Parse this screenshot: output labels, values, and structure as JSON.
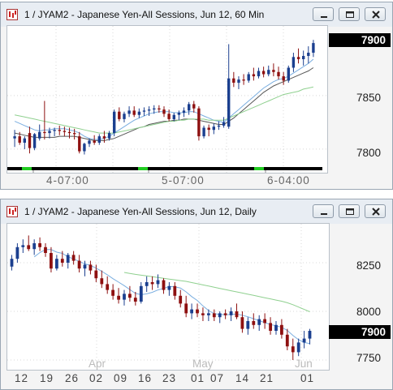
{
  "window_top": {
    "title": "1 / JYAM2 - Japanese Yen-All Sessions, Jun 12, 60 Min",
    "price_labels": [
      "7850",
      "7800"
    ],
    "current_price": "7900",
    "time_labels": [
      "4-07:00",
      "5-07:00",
      "6-04:00"
    ]
  },
  "window_bottom": {
    "title": "1 / JYAM2 - Japanese Yen-All Sessions, Jun 12, Daily",
    "price_labels": [
      "8250",
      "8000",
      "7750"
    ],
    "current_price": "7900",
    "month_labels": [
      "Apr",
      "May",
      "Jun"
    ],
    "date_labels": [
      "12",
      "19",
      "26",
      "02",
      "09",
      "16",
      "23",
      "01",
      "07",
      "14",
      "21",
      "01"
    ]
  },
  "icons": [
    "chart-window-icon",
    "minimize-icon",
    "restore-icon",
    "close-icon"
  ],
  "colors": {
    "up_candle": "#1b3f8f",
    "down_candle": "#8e1010",
    "ma_fast": "#7aaee0",
    "ma_slow": "#8fd08f",
    "ma_mid": "#555555",
    "session_bar": "#000000",
    "session_marker": "#22cc22"
  },
  "chart_data": [
    {
      "type": "candlestick",
      "title": "",
      "price_axis_ticks": [
        7850,
        7800
      ],
      "ylim": [
        7778,
        7915
      ],
      "last_price": 7900,
      "candles": [
        [
          7810,
          7818,
          7802,
          7812
        ],
        [
          7812,
          7816,
          7804,
          7806
        ],
        [
          7806,
          7812,
          7800,
          7810
        ],
        [
          7815,
          7821,
          7796,
          7801
        ],
        [
          7801,
          7815,
          7799,
          7814
        ],
        [
          7810,
          7823,
          7808,
          7816
        ],
        [
          7816,
          7845,
          7809,
          7815
        ],
        [
          7815,
          7820,
          7810,
          7817
        ],
        [
          7817,
          7820,
          7812,
          7818
        ],
        [
          7818,
          7822,
          7813,
          7817
        ],
        [
          7817,
          7821,
          7812,
          7816
        ],
        [
          7816,
          7820,
          7810,
          7815
        ],
        [
          7815,
          7819,
          7809,
          7814
        ],
        [
          7812,
          7816,
          7796,
          7798
        ],
        [
          7798,
          7806,
          7795,
          7805
        ],
        [
          7805,
          7810,
          7802,
          7808
        ],
        [
          7808,
          7813,
          7804,
          7806
        ],
        [
          7806,
          7814,
          7804,
          7812
        ],
        [
          7812,
          7817,
          7806,
          7810
        ],
        [
          7810,
          7817,
          7808,
          7815
        ],
        [
          7815,
          7837,
          7812,
          7835
        ],
        [
          7835,
          7839,
          7826,
          7828
        ],
        [
          7828,
          7835,
          7825,
          7833
        ],
        [
          7833,
          7840,
          7830,
          7836
        ],
        [
          7836,
          7840,
          7830,
          7832
        ],
        [
          7832,
          7838,
          7829,
          7835
        ],
        [
          7835,
          7839,
          7831,
          7836
        ],
        [
          7836,
          7840,
          7831,
          7837
        ],
        [
          7837,
          7841,
          7833,
          7838
        ],
        [
          7838,
          7841,
          7834,
          7837
        ],
        [
          7837,
          7840,
          7830,
          7833
        ],
        [
          7833,
          7837,
          7826,
          7828
        ],
        [
          7828,
          7834,
          7826,
          7832
        ],
        [
          7832,
          7836,
          7827,
          7834
        ],
        [
          7834,
          7839,
          7830,
          7836
        ],
        [
          7836,
          7844,
          7832,
          7842
        ],
        [
          7842,
          7845,
          7834,
          7838
        ],
        [
          7838,
          7840,
          7808,
          7812
        ],
        [
          7812,
          7822,
          7810,
          7820
        ],
        [
          7820,
          7823,
          7812,
          7818
        ],
        [
          7818,
          7824,
          7814,
          7821
        ],
        [
          7821,
          7826,
          7818,
          7822
        ],
        [
          7822,
          7830,
          7820,
          7825
        ],
        [
          7821,
          7898,
          7819,
          7866
        ],
        [
          7866,
          7872,
          7858,
          7862
        ],
        [
          7862,
          7868,
          7856,
          7865
        ],
        [
          7865,
          7870,
          7860,
          7864
        ],
        [
          7864,
          7872,
          7862,
          7870
        ],
        [
          7870,
          7876,
          7864,
          7868
        ],
        [
          7868,
          7876,
          7866,
          7873
        ],
        [
          7873,
          7877,
          7867,
          7870
        ],
        [
          7870,
          7878,
          7868,
          7874
        ],
        [
          7874,
          7880,
          7868,
          7872
        ],
        [
          7872,
          7877,
          7865,
          7868
        ],
        [
          7868,
          7872,
          7860,
          7864
        ],
        [
          7864,
          7878,
          7862,
          7876
        ],
        [
          7876,
          7890,
          7872,
          7886
        ],
        [
          7886,
          7894,
          7880,
          7884
        ],
        [
          7884,
          7892,
          7878,
          7887
        ],
        [
          7887,
          7896,
          7880,
          7890
        ],
        [
          7890,
          7902,
          7886,
          7899
        ]
      ],
      "moving_averages": [
        {
          "color": "ma_fast",
          "values": [
            7826,
            7824,
            7822,
            7820,
            7818,
            7817,
            7818,
            7818,
            7819,
            7819,
            7819,
            7818,
            7817,
            7815,
            7812,
            7810,
            7809,
            7809,
            7810,
            7812,
            7815,
            7818,
            7821,
            7824,
            7827,
            7829,
            7831,
            7833,
            7834,
            7835,
            7835,
            7835,
            7834,
            7834,
            7834,
            7835,
            7835,
            7833,
            7831,
            7829,
            7827,
            7826,
            7825,
            7829,
            7833,
            7837,
            7841,
            7845,
            7849,
            7853,
            7857,
            7860,
            7863,
            7865,
            7866,
            7868,
            7871,
            7874,
            7877,
            7880,
            7884
          ]
        },
        {
          "color": "ma_mid",
          "values": [
            7815,
            7814,
            7813,
            7812,
            7811,
            7811,
            7811,
            7811,
            7811,
            7812,
            7812,
            7812,
            7812,
            7811,
            7810,
            7809,
            7808,
            7808,
            7808,
            7809,
            7810,
            7812,
            7814,
            7816,
            7818,
            7820,
            7821,
            7823,
            7824,
            7825,
            7826,
            7826,
            7827,
            7827,
            7828,
            7828,
            7828,
            7827,
            7826,
            7825,
            7824,
            7823,
            7823,
            7826,
            7829,
            7833,
            7837,
            7841,
            7845,
            7849,
            7853,
            7856,
            7859,
            7861,
            7863,
            7865,
            7867,
            7869,
            7871,
            7873,
            7876
          ]
        },
        {
          "color": "ma_slow",
          "values": [
            7832,
            7831,
            7830,
            7829,
            7828,
            7827,
            7826,
            7825,
            7824,
            7823,
            7822,
            7821,
            7820,
            7819,
            7818,
            7817,
            7816,
            7815,
            7815,
            7815,
            7815,
            7816,
            7817,
            7818,
            7819,
            7820,
            7821,
            7822,
            7823,
            7824,
            7825,
            7826,
            7826,
            7827,
            7827,
            7828,
            7828,
            7828,
            7828,
            7827,
            7827,
            7827,
            7827,
            7829,
            7831,
            7833,
            7835,
            7837,
            7839,
            7841,
            7843,
            7845,
            7847,
            7849,
            7851,
            7852,
            7853,
            7854,
            7856,
            7857,
            7858
          ]
        }
      ]
    },
    {
      "type": "candlestick",
      "title": "",
      "price_axis_ticks": [
        8250,
        8000,
        7750
      ],
      "ylim": [
        7700,
        8450
      ],
      "last_price": 7900,
      "candles": [
        [
          8230,
          8290,
          8210,
          8270
        ],
        [
          8270,
          8350,
          8250,
          8330
        ],
        [
          8330,
          8370,
          8300,
          8340
        ],
        [
          8340,
          8390,
          8310,
          8320
        ],
        [
          8320,
          8370,
          8290,
          8350
        ],
        [
          8350,
          8380,
          8310,
          8330
        ],
        [
          8330,
          8350,
          8280,
          8300
        ],
        [
          8300,
          8330,
          8200,
          8220
        ],
        [
          8220,
          8290,
          8210,
          8270
        ],
        [
          8270,
          8310,
          8230,
          8250
        ],
        [
          8250,
          8300,
          8220,
          8290
        ],
        [
          8290,
          8310,
          8240,
          8260
        ],
        [
          8260,
          8290,
          8200,
          8220
        ],
        [
          8220,
          8260,
          8180,
          8240
        ],
        [
          8240,
          8260,
          8190,
          8210
        ],
        [
          8210,
          8240,
          8150,
          8170
        ],
        [
          8170,
          8210,
          8120,
          8140
        ],
        [
          8140,
          8180,
          8090,
          8110
        ],
        [
          8110,
          8140,
          8060,
          8080
        ],
        [
          8080,
          8120,
          8040,
          8060
        ],
        [
          8060,
          8110,
          8030,
          8090
        ],
        [
          8090,
          8130,
          8050,
          8070
        ],
        [
          8070,
          8100,
          8030,
          8050
        ],
        [
          8050,
          8150,
          8040,
          8130
        ],
        [
          8130,
          8180,
          8100,
          8150
        ],
        [
          8150,
          8180,
          8110,
          8140
        ],
        [
          8140,
          8190,
          8120,
          8160
        ],
        [
          8160,
          8170,
          8090,
          8110
        ],
        [
          8110,
          8150,
          8080,
          8130
        ],
        [
          8130,
          8150,
          8060,
          8080
        ],
        [
          8080,
          8110,
          8020,
          8040
        ],
        [
          8040,
          8080,
          7970,
          7990
        ],
        [
          7990,
          8040,
          7960,
          8010
        ],
        [
          8010,
          8040,
          7970,
          7990
        ],
        [
          7990,
          8020,
          7950,
          7980
        ],
        [
          7980,
          8010,
          7950,
          7990
        ],
        [
          7990,
          8010,
          7950,
          7970
        ],
        [
          7970,
          8000,
          7940,
          7990
        ],
        [
          7990,
          8010,
          7960,
          7980
        ],
        [
          7980,
          8020,
          7950,
          8000
        ],
        [
          8000,
          8040,
          7960,
          7970
        ],
        [
          7970,
          8000,
          7890,
          7910
        ],
        [
          7910,
          7970,
          7880,
          7950
        ],
        [
          7950,
          7990,
          7910,
          7930
        ],
        [
          7930,
          7980,
          7900,
          7960
        ],
        [
          7960,
          7990,
          7910,
          7940
        ],
        [
          7940,
          7970,
          7880,
          7900
        ],
        [
          7900,
          7950,
          7880,
          7930
        ],
        [
          7930,
          7960,
          7860,
          7880
        ],
        [
          7880,
          7910,
          7800,
          7820
        ],
        [
          7820,
          7860,
          7750,
          7790
        ],
        [
          7790,
          7860,
          7770,
          7840
        ],
        [
          7840,
          7900,
          7810,
          7860
        ],
        [
          7860,
          7910,
          7830,
          7900
        ]
      ],
      "moving_averages": [
        {
          "color": "ma_fast",
          "values": [
            null,
            null,
            null,
            null,
            8280,
            8302,
            8318,
            8318,
            8304,
            8298,
            8280,
            8270,
            8256,
            8244,
            8236,
            8222,
            8206,
            8188,
            8168,
            8150,
            8132,
            8112,
            8092,
            8086,
            8090,
            8098,
            8110,
            8118,
            8128,
            8126,
            8120,
            8100,
            8076,
            8056,
            8028,
            8004,
            7988,
            7984,
            7982,
            7984,
            7986,
            7980,
            7972,
            7962,
            7952,
            7942,
            7932,
            7926,
            7918,
            7902,
            7876,
            7854,
            7840,
            7834
          ]
        },
        {
          "color": "ma_slow",
          "values": [
            null,
            null,
            null,
            null,
            null,
            null,
            null,
            null,
            null,
            null,
            null,
            null,
            null,
            null,
            null,
            null,
            null,
            null,
            null,
            null,
            8200,
            8195,
            8190,
            8186,
            8182,
            8178,
            8174,
            8170,
            8166,
            8162,
            8158,
            8154,
            8148,
            8142,
            8136,
            8130,
            8124,
            8118,
            8112,
            8106,
            8100,
            8094,
            8088,
            8082,
            8076,
            8070,
            8064,
            8058,
            8052,
            8044,
            8034,
            8022,
            8010,
            7998
          ]
        }
      ]
    }
  ]
}
